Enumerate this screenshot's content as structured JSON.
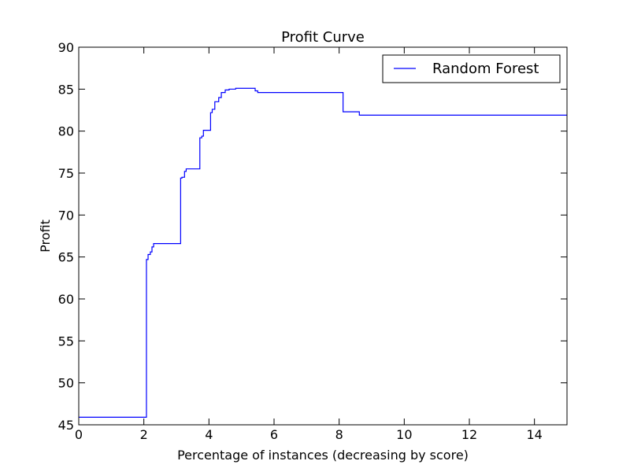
{
  "chart_data": {
    "type": "line",
    "title": "Profit Curve",
    "xlabel": "Percentage of instances (decreasing by score)",
    "ylabel": "Profit",
    "xlim": [
      0,
      15
    ],
    "ylim": [
      45,
      90
    ],
    "xticks": [
      0,
      2,
      4,
      6,
      8,
      10,
      12,
      14
    ],
    "yticks": [
      45,
      50,
      55,
      60,
      65,
      70,
      75,
      80,
      85,
      90
    ],
    "grid": false,
    "legend_position": "top-right",
    "series": [
      {
        "name": "Random Forest",
        "color": "#0000ff",
        "step": true,
        "x": [
          0,
          2.08,
          2.13,
          2.2,
          2.25,
          2.3,
          3.13,
          3.17,
          3.25,
          3.3,
          3.72,
          3.78,
          3.83,
          4.05,
          4.1,
          4.18,
          4.3,
          4.38,
          4.5,
          4.62,
          4.82,
          5.42,
          5.5,
          8.12,
          8.62,
          15
        ],
        "y": [
          45.9,
          64.7,
          65.3,
          65.6,
          66.2,
          66.6,
          74.4,
          74.5,
          75.2,
          75.5,
          79.2,
          79.4,
          80.1,
          82.2,
          82.6,
          83.5,
          84.0,
          84.6,
          84.9,
          85.0,
          85.1,
          84.8,
          84.6,
          82.3,
          81.9,
          81.9
        ]
      }
    ]
  }
}
